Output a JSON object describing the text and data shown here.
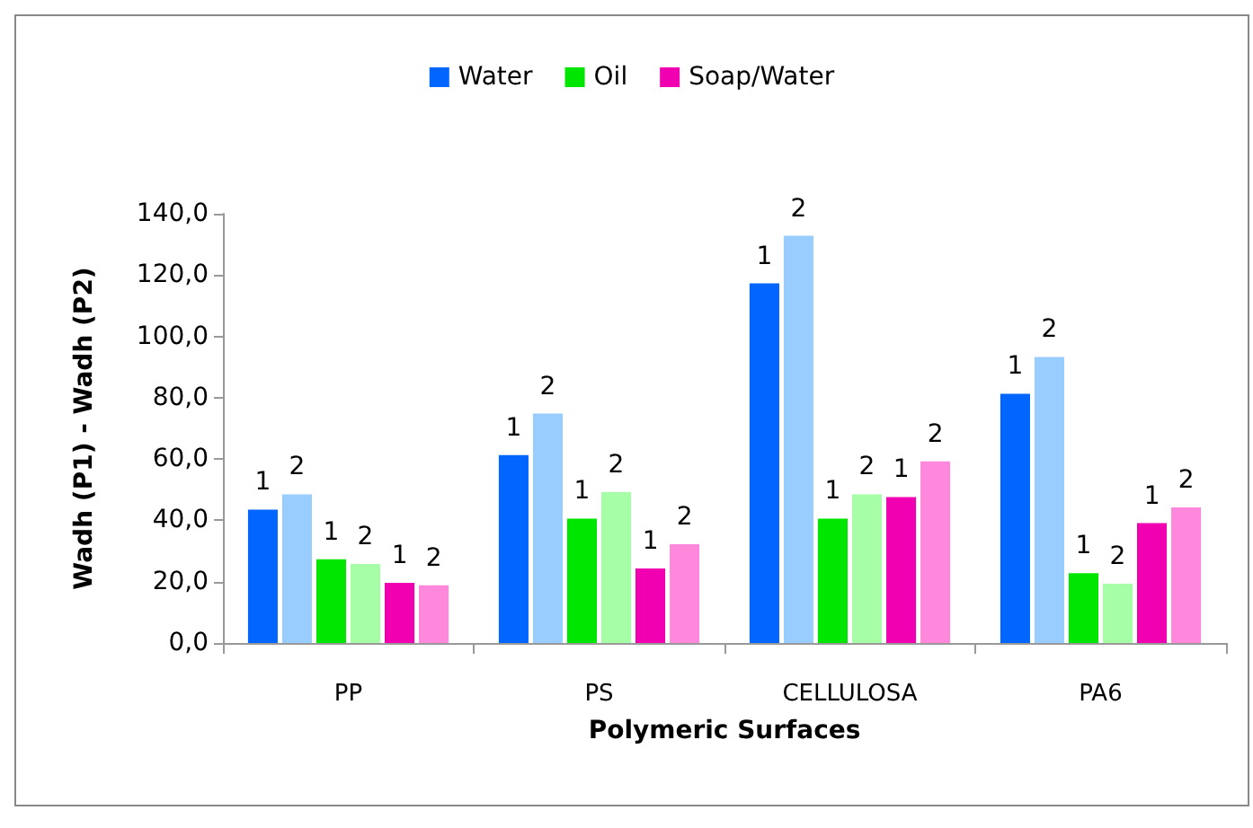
{
  "chart_data": {
    "type": "bar",
    "xlabel": "Polymeric Surfaces",
    "ylabel": "Wadh (P1) - Wadh (P2)",
    "categories": [
      "PP",
      "PS",
      "CELLULOSA",
      "PA6"
    ],
    "series": [
      {
        "name": "Water",
        "color": "#0066ff",
        "values": [
          43.5,
          61.3,
          117.3,
          81.3
        ]
      },
      {
        "color": "#99ccff",
        "values": [
          48.5,
          74.8,
          132.8,
          93.3
        ]
      },
      {
        "name": "Oil",
        "color": "#00e600",
        "values": [
          27.3,
          40.6,
          40.6,
          22.8
        ]
      },
      {
        "color": "#a6ffa6",
        "values": [
          25.8,
          49.2,
          48.5,
          19.3
        ]
      },
      {
        "name": "Soap/Water",
        "color": "#f000b0",
        "values": [
          19.6,
          24.3,
          47.6,
          39.1
        ]
      },
      {
        "color": "#ff88dd",
        "values": [
          18.8,
          32.2,
          59.2,
          44.2
        ]
      }
    ],
    "annotations": [
      "1",
      "2"
    ],
    "ylim": [
      0,
      140
    ],
    "yticks": [
      {
        "value": 0,
        "label": "0,0"
      },
      {
        "value": 20,
        "label": "20,0"
      },
      {
        "value": 40,
        "label": "40,0"
      },
      {
        "value": 60,
        "label": "60,0"
      },
      {
        "value": 80,
        "label": "80,0"
      },
      {
        "value": 100,
        "label": "100,0"
      },
      {
        "value": 120,
        "label": "120,0"
      },
      {
        "value": 140,
        "label": "140,0"
      }
    ],
    "grid": false,
    "legend": "top"
  }
}
